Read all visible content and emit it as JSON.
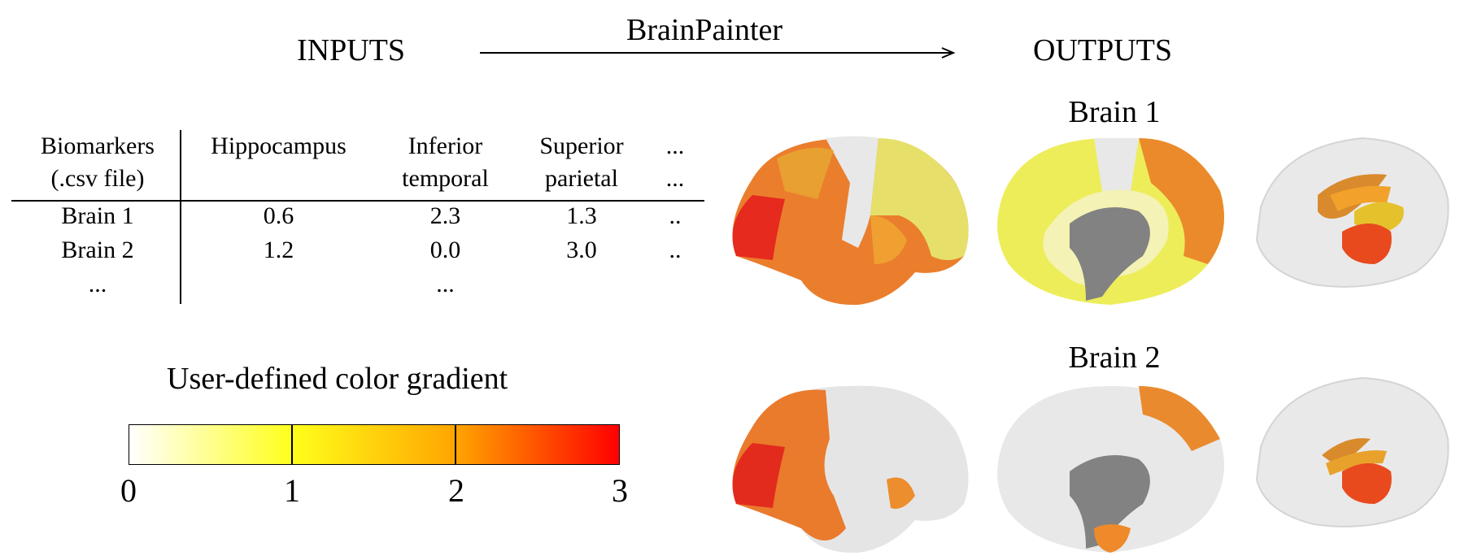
{
  "header": {
    "inputs_label": "INPUTS",
    "arrow_label": "BrainPainter",
    "outputs_label": "OUTPUTS"
  },
  "table": {
    "columns": [
      {
        "line1": "Biomarkers",
        "line2": "(.csv file)"
      },
      {
        "line1": "Hippocampus",
        "line2": ""
      },
      {
        "line1": "Inferior",
        "line2": "temporal"
      },
      {
        "line1": "Superior",
        "line2": "parietal"
      },
      {
        "line1": "...",
        "line2": "..."
      }
    ],
    "rows": [
      [
        "Brain 1",
        "0.6",
        "2.3",
        "1.3",
        ".."
      ],
      [
        "Brain 2",
        "1.2",
        "0.0",
        "3.0",
        ".."
      ],
      [
        "...",
        "",
        "...",
        "",
        ""
      ]
    ]
  },
  "colorbar": {
    "title": "User-defined color gradient",
    "ticks": [
      "0",
      "1",
      "2",
      "3"
    ],
    "colors": [
      "#ffffff",
      "#ffff1a",
      "#ffa500",
      "#ff0000"
    ]
  },
  "outputs": {
    "brain1_title": "Brain 1",
    "brain2_title": "Brain 2"
  }
}
